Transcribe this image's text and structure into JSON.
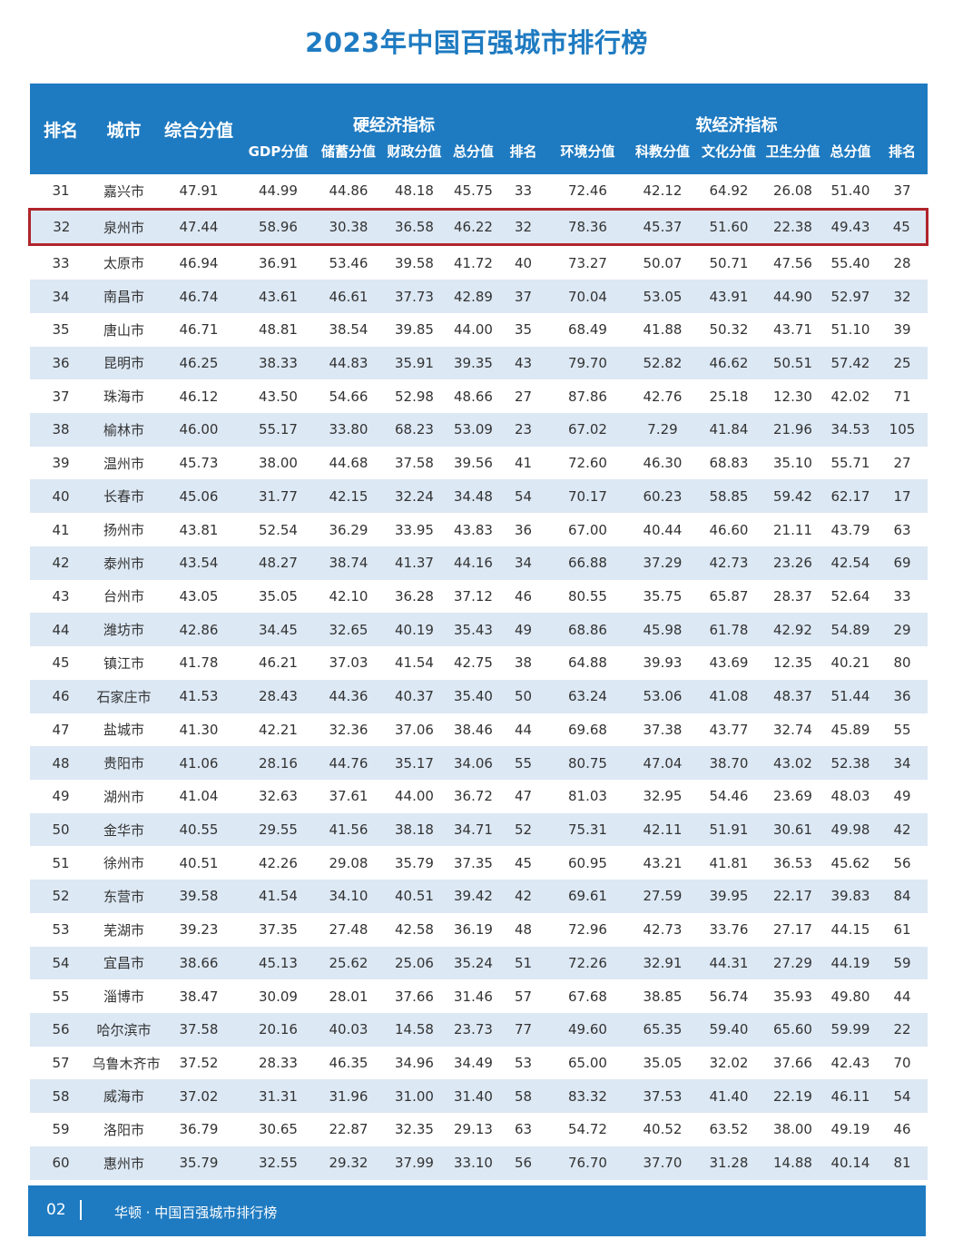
{
  "title": "2023年中国百强城市排行榜",
  "header": {
    "rank": "排名",
    "city": "城市",
    "composite": "综合分值",
    "hard_group": "硬经济指标",
    "hard_cols": [
      "GDP分值",
      "储蓄分值",
      "财政分值",
      "总分值",
      "排名"
    ],
    "soft_group": "软经济指标",
    "soft_cols": [
      "环境分值",
      "科教分值",
      "文化分值",
      "卫生分值",
      "总分值",
      "排名"
    ]
  },
  "highlight_rank": "32",
  "highlight_color": "#b0242b",
  "accent_color": "#1f7bc1",
  "rows": [
    [
      "31",
      "嘉兴市",
      "47.91",
      "44.99",
      "44.86",
      "48.18",
      "45.75",
      "33",
      "72.46",
      "42.12",
      "64.92",
      "26.08",
      "51.40",
      "37"
    ],
    [
      "32",
      "泉州市",
      "47.44",
      "58.96",
      "30.38",
      "36.58",
      "46.22",
      "32",
      "78.36",
      "45.37",
      "51.60",
      "22.38",
      "49.43",
      "45"
    ],
    [
      "33",
      "太原市",
      "46.94",
      "36.91",
      "53.46",
      "39.58",
      "41.72",
      "40",
      "73.27",
      "50.07",
      "50.71",
      "47.56",
      "55.40",
      "28"
    ],
    [
      "34",
      "南昌市",
      "46.74",
      "43.61",
      "46.61",
      "37.73",
      "42.89",
      "37",
      "70.04",
      "53.05",
      "43.91",
      "44.90",
      "52.97",
      "32"
    ],
    [
      "35",
      "唐山市",
      "46.71",
      "48.81",
      "38.54",
      "39.85",
      "44.00",
      "35",
      "68.49",
      "41.88",
      "50.32",
      "43.71",
      "51.10",
      "39"
    ],
    [
      "36",
      "昆明市",
      "46.25",
      "38.33",
      "44.83",
      "35.91",
      "39.35",
      "43",
      "79.70",
      "52.82",
      "46.62",
      "50.51",
      "57.42",
      "25"
    ],
    [
      "37",
      "珠海市",
      "46.12",
      "43.50",
      "54.66",
      "52.98",
      "48.66",
      "27",
      "87.86",
      "42.76",
      "25.18",
      "12.30",
      "42.02",
      "71"
    ],
    [
      "38",
      "榆林市",
      "46.00",
      "55.17",
      "33.80",
      "68.23",
      "53.09",
      "23",
      "67.02",
      "7.29",
      "41.84",
      "21.96",
      "34.53",
      "105"
    ],
    [
      "39",
      "温州市",
      "45.73",
      "38.00",
      "44.68",
      "37.58",
      "39.56",
      "41",
      "72.60",
      "46.30",
      "68.83",
      "35.10",
      "55.71",
      "27"
    ],
    [
      "40",
      "长春市",
      "45.06",
      "31.77",
      "42.15",
      "32.24",
      "34.48",
      "54",
      "70.17",
      "60.23",
      "58.85",
      "59.42",
      "62.17",
      "17"
    ],
    [
      "41",
      "扬州市",
      "43.81",
      "52.54",
      "36.29",
      "33.95",
      "43.83",
      "36",
      "67.00",
      "40.44",
      "46.60",
      "21.11",
      "43.79",
      "63"
    ],
    [
      "42",
      "泰州市",
      "43.54",
      "48.27",
      "38.74",
      "41.37",
      "44.16",
      "34",
      "66.88",
      "37.29",
      "42.73",
      "23.26",
      "42.54",
      "69"
    ],
    [
      "43",
      "台州市",
      "43.05",
      "35.05",
      "42.10",
      "36.28",
      "37.12",
      "46",
      "80.55",
      "35.75",
      "65.87",
      "28.37",
      "52.64",
      "33"
    ],
    [
      "44",
      "潍坊市",
      "42.86",
      "34.45",
      "32.65",
      "40.19",
      "35.43",
      "49",
      "68.86",
      "45.98",
      "61.78",
      "42.92",
      "54.89",
      "29"
    ],
    [
      "45",
      "镇江市",
      "41.78",
      "46.21",
      "37.03",
      "41.54",
      "42.75",
      "38",
      "64.88",
      "39.93",
      "43.69",
      "12.35",
      "40.21",
      "80"
    ],
    [
      "46",
      "石家庄市",
      "41.53",
      "28.43",
      "44.36",
      "40.37",
      "35.40",
      "50",
      "63.24",
      "53.06",
      "41.08",
      "48.37",
      "51.44",
      "36"
    ],
    [
      "47",
      "盐城市",
      "41.30",
      "42.21",
      "32.36",
      "37.06",
      "38.46",
      "44",
      "69.68",
      "37.38",
      "43.77",
      "32.74",
      "45.89",
      "55"
    ],
    [
      "48",
      "贵阳市",
      "41.06",
      "28.16",
      "44.76",
      "35.17",
      "34.06",
      "55",
      "80.75",
      "47.04",
      "38.70",
      "43.02",
      "52.38",
      "34"
    ],
    [
      "49",
      "湖州市",
      "41.04",
      "32.63",
      "37.61",
      "44.00",
      "36.72",
      "47",
      "81.03",
      "32.95",
      "54.46",
      "23.69",
      "48.03",
      "49"
    ],
    [
      "50",
      "金华市",
      "40.55",
      "29.55",
      "41.56",
      "38.18",
      "34.71",
      "52",
      "75.31",
      "42.11",
      "51.91",
      "30.61",
      "49.98",
      "42"
    ],
    [
      "51",
      "徐州市",
      "40.51",
      "42.26",
      "29.08",
      "35.79",
      "37.35",
      "45",
      "60.95",
      "43.21",
      "41.81",
      "36.53",
      "45.62",
      "56"
    ],
    [
      "52",
      "东营市",
      "39.58",
      "41.54",
      "34.10",
      "40.51",
      "39.42",
      "42",
      "69.61",
      "27.59",
      "39.95",
      "22.17",
      "39.83",
      "84"
    ],
    [
      "53",
      "芜湖市",
      "39.23",
      "37.35",
      "27.48",
      "42.58",
      "36.19",
      "48",
      "72.96",
      "42.73",
      "33.76",
      "27.17",
      "44.15",
      "61"
    ],
    [
      "54",
      "宜昌市",
      "38.66",
      "45.13",
      "25.62",
      "25.06",
      "35.24",
      "51",
      "72.26",
      "32.91",
      "44.31",
      "27.29",
      "44.19",
      "59"
    ],
    [
      "55",
      "淄博市",
      "38.47",
      "30.09",
      "28.01",
      "37.66",
      "31.46",
      "57",
      "67.68",
      "38.85",
      "56.74",
      "35.93",
      "49.80",
      "44"
    ],
    [
      "56",
      "哈尔滨市",
      "37.58",
      "20.16",
      "40.03",
      "14.58",
      "23.73",
      "77",
      "49.60",
      "65.35",
      "59.40",
      "65.60",
      "59.99",
      "22"
    ],
    [
      "57",
      "乌鲁木齐市",
      "37.52",
      "28.33",
      "46.35",
      "34.96",
      "34.49",
      "53",
      "65.00",
      "35.05",
      "32.02",
      "37.66",
      "42.43",
      "70"
    ],
    [
      "58",
      "威海市",
      "37.02",
      "31.31",
      "31.96",
      "31.00",
      "31.40",
      "58",
      "83.32",
      "37.53",
      "41.40",
      "22.19",
      "46.11",
      "54"
    ],
    [
      "59",
      "洛阳市",
      "36.79",
      "30.65",
      "22.87",
      "32.35",
      "29.13",
      "63",
      "54.72",
      "40.52",
      "63.52",
      "38.00",
      "49.19",
      "46"
    ],
    [
      "60",
      "惠州市",
      "35.79",
      "32.55",
      "29.32",
      "37.99",
      "33.10",
      "56",
      "76.70",
      "37.70",
      "31.28",
      "14.88",
      "40.14",
      "81"
    ]
  ],
  "footer": {
    "page": "02",
    "text": "华顿 · 中国百强城市排行榜"
  }
}
